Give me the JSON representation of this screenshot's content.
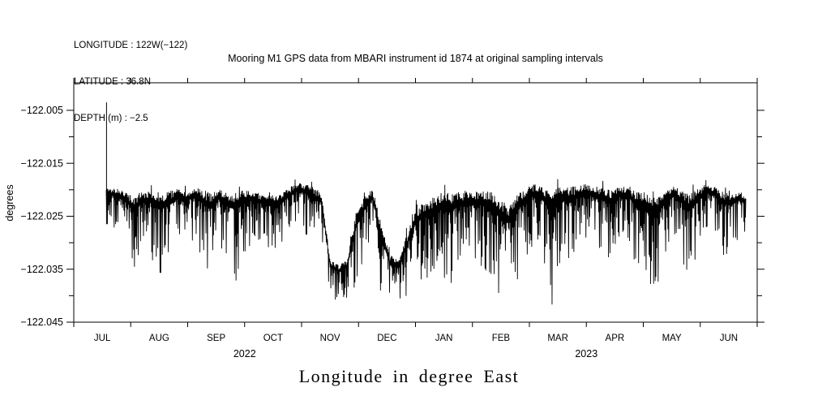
{
  "header": {
    "info": [
      "LONGITUDE : 122W(−122)",
      "LATITUDE : 36.8N",
      "DEPTH (m) : −2.5"
    ]
  },
  "caption": "Longitude in degree East",
  "colors": {
    "background": "#ffffff",
    "line": "#000000",
    "axis": "#000000"
  },
  "chart_data": {
    "type": "line",
    "title": "Mooring M1 GPS data from MBARI instrument id 1874 at original sampling intervals",
    "xlabel": "Longitude in degree East",
    "ylabel": "degrees",
    "grid": false,
    "legend": "none",
    "x_axis": {
      "range_months": [
        0,
        12
      ],
      "months": [
        "JUL",
        "AUG",
        "SEP",
        "OCT",
        "NOV",
        "DEC",
        "JAN",
        "FEB",
        "MAR",
        "APR",
        "MAY",
        "JUN"
      ],
      "years": [
        {
          "label": "2022",
          "center_month": 3
        },
        {
          "label": "2023",
          "center_month": 9
        }
      ]
    },
    "y_axis": {
      "label": "degrees",
      "range": [
        -122.045,
        -121.9998
      ],
      "ticks_labeled": [
        {
          "v": -122.005,
          "label": "−122.005"
        },
        {
          "v": -122.015,
          "label": "−122.015"
        },
        {
          "v": -122.025,
          "label": "−122.025"
        },
        {
          "v": -122.035,
          "label": "−122.035"
        },
        {
          "v": -122.045,
          "label": "−122.045"
        }
      ],
      "ticks_minor": [
        -122.01,
        -122.02,
        -122.03,
        -122.04
      ]
    },
    "series": {
      "name": "longitude-degrees-east",
      "color": "#000000",
      "start_month": 0.57,
      "end_month": 11.8,
      "initial_spike": {
        "month": 0.575,
        "top": -122.0035,
        "bottom": -122.0265
      },
      "envelope": {
        "t": [
          0.57,
          0.75,
          0.9,
          1.05,
          1.2,
          1.35,
          1.5,
          1.65,
          1.8,
          1.95,
          2.1,
          2.25,
          2.4,
          2.55,
          2.7,
          2.85,
          3.0,
          3.15,
          3.3,
          3.45,
          3.6,
          3.75,
          3.9,
          4.05,
          4.2,
          4.35,
          4.5,
          4.65,
          4.8,
          4.95,
          5.1,
          5.25,
          5.4,
          5.55,
          5.7,
          5.85,
          6.0,
          6.15,
          6.3,
          6.45,
          6.6,
          6.75,
          6.9,
          7.05,
          7.2,
          7.35,
          7.5,
          7.65,
          7.8,
          7.95,
          8.1,
          8.25,
          8.4,
          8.55,
          8.7,
          8.85,
          9.0,
          9.15,
          9.3,
          9.45,
          9.6,
          9.75,
          9.9,
          10.05,
          10.2,
          10.35,
          10.5,
          10.65,
          10.8,
          10.95,
          11.1,
          11.25,
          11.4,
          11.55,
          11.7,
          11.8
        ],
        "hi": [
          -122.019,
          -122.0195,
          -122.02,
          -122.0205,
          -122.02,
          -122.0195,
          -122.02,
          -122.02,
          -122.0195,
          -122.02,
          -122.019,
          -122.0195,
          -122.02,
          -122.0195,
          -122.02,
          -122.02,
          -122.0195,
          -122.02,
          -122.0205,
          -122.02,
          -122.0205,
          -122.0195,
          -122.0185,
          -122.0185,
          -122.019,
          -122.02,
          -122.033,
          -122.034,
          -122.033,
          -122.024,
          -122.021,
          -122.0195,
          -122.026,
          -122.032,
          -122.033,
          -122.028,
          -122.023,
          -122.022,
          -122.021,
          -122.02,
          -122.0195,
          -122.02,
          -122.0195,
          -122.02,
          -122.0195,
          -122.02,
          -122.021,
          -122.022,
          -122.02,
          -122.019,
          -122.0185,
          -122.019,
          -122.019,
          -122.0185,
          -122.019,
          -122.019,
          -122.0185,
          -122.019,
          -122.019,
          -122.0195,
          -122.019,
          -122.019,
          -122.0195,
          -122.02,
          -122.021,
          -122.02,
          -122.019,
          -122.0195,
          -122.02,
          -122.0195,
          -122.0185,
          -122.019,
          -122.02,
          -122.0205,
          -122.02,
          -122.021
        ],
        "lo": [
          -122.028,
          -122.0275,
          -122.029,
          -122.037,
          -122.031,
          -122.033,
          -122.037,
          -122.034,
          -122.03,
          -122.031,
          -122.03,
          -122.033,
          -122.037,
          -122.03,
          -122.034,
          -122.0375,
          -122.033,
          -122.029,
          -122.03,
          -122.034,
          -122.031,
          -122.029,
          -122.027,
          -122.028,
          -122.032,
          -122.031,
          -122.0405,
          -122.041,
          -122.0405,
          -122.039,
          -122.0345,
          -122.03,
          -122.04,
          -122.041,
          -122.0415,
          -122.04,
          -122.039,
          -122.036,
          -122.038,
          -122.037,
          -122.0415,
          -122.034,
          -122.036,
          -122.033,
          -122.035,
          -122.038,
          -122.0415,
          -122.0418,
          -122.037,
          -122.033,
          -122.03,
          -122.033,
          -122.0418,
          -122.034,
          -122.035,
          -122.03,
          -122.029,
          -122.031,
          -122.033,
          -122.034,
          -122.029,
          -122.03,
          -122.039,
          -122.039,
          -122.0397,
          -122.034,
          -122.029,
          -122.032,
          -122.0375,
          -122.033,
          -122.028,
          -122.029,
          -122.033,
          -122.031,
          -122.029,
          -122.028
        ]
      }
    }
  }
}
